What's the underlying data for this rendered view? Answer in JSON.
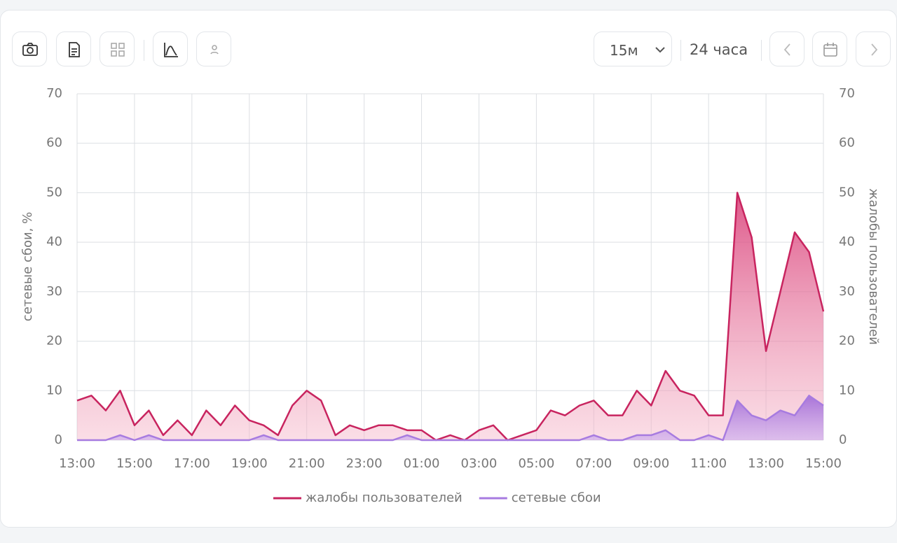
{
  "toolbar": {
    "interval": "15м",
    "range": "24 часа"
  },
  "chart_data": {
    "type": "area",
    "y_label": "сетевые сбои, %",
    "y2_label": "жалобы пользователей",
    "categories": [
      "13:00",
      null,
      null,
      null,
      "15:00",
      null,
      null,
      null,
      "17:00",
      null,
      null,
      null,
      "19:00",
      null,
      null,
      null,
      "21:00",
      null,
      null,
      null,
      "23:00",
      null,
      null,
      null,
      "01:00",
      null,
      null,
      null,
      "03:00",
      null,
      null,
      null,
      "05:00",
      null,
      null,
      null,
      "07:00",
      null,
      null,
      null,
      "09:00",
      null,
      null,
      null,
      "11:00",
      null,
      null,
      null,
      "13:00",
      null,
      null,
      null,
      "15:00"
    ],
    "series": [
      {
        "name": "жалобы пользователей",
        "color": "#c8245f",
        "axis": "y2",
        "values": [
          8,
          9,
          6,
          10,
          3,
          6,
          1,
          4,
          1,
          6,
          3,
          7,
          4,
          3,
          1,
          7,
          10,
          8,
          1,
          3,
          2,
          3,
          3,
          2,
          2,
          0,
          1,
          0,
          2,
          3,
          0,
          1,
          2,
          6,
          5,
          7,
          8,
          5,
          5,
          10,
          7,
          14,
          10,
          9,
          5,
          5,
          50,
          41,
          18,
          30,
          42,
          38,
          26
        ]
      },
      {
        "name": "сетевые сбои",
        "color": "#a77be0",
        "values": [
          0,
          0,
          0,
          1,
          0,
          1,
          0,
          0,
          0,
          0,
          0,
          0,
          0,
          1,
          0,
          0,
          0,
          0,
          0,
          0,
          0,
          0,
          0,
          1,
          0,
          0,
          0,
          0,
          0,
          0,
          0,
          0,
          0,
          0,
          0,
          0,
          1,
          0,
          0,
          1,
          1,
          2,
          0,
          0,
          1,
          0,
          8,
          5,
          4,
          6,
          5,
          9,
          7
        ]
      }
    ],
    "ylim": [
      0,
      70
    ],
    "yticks": [
      0,
      10,
      20,
      30,
      40,
      50,
      60,
      70
    ],
    "y2lim": [
      0,
      70
    ],
    "y2ticks": [
      0,
      10,
      20,
      30,
      40,
      50,
      60,
      70
    ],
    "grid": true,
    "legend": "bottom"
  }
}
